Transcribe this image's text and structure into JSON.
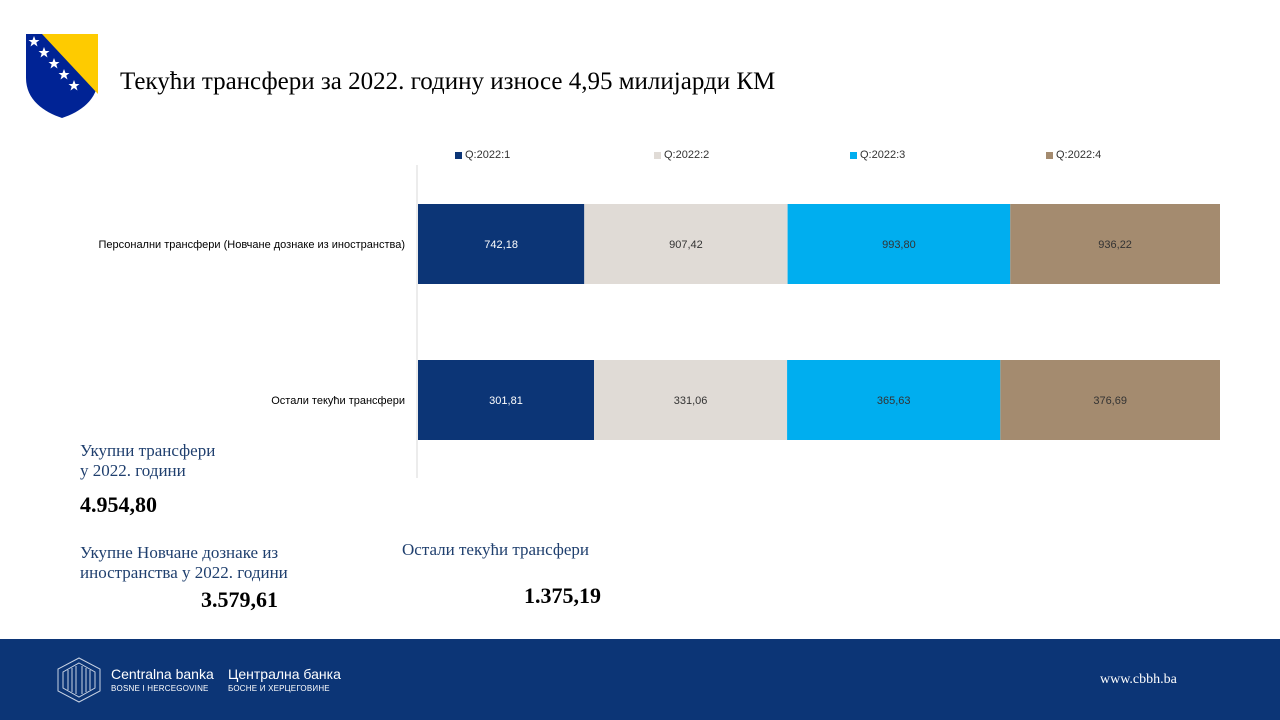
{
  "header": {
    "title": "Текући трансфери за 2022. годину износе 4,95 милијарди КМ"
  },
  "chart_data": {
    "type": "bar",
    "orientation": "horizontal",
    "stacked": true,
    "categories": [
      "Персонални трансфери (Новчане дознаке из иностранства)",
      "Остали текући трансфери"
    ],
    "series": [
      {
        "name": "Q:2022:1",
        "values": [
          742.18,
          301.81
        ],
        "labels": [
          "742,18",
          "301,81"
        ],
        "color": "#0c3576"
      },
      {
        "name": "Q:2022:2",
        "values": [
          907.42,
          331.06
        ],
        "labels": [
          "907,42",
          "331,06"
        ],
        "color": "#e0dbd6"
      },
      {
        "name": "Q:2022:3",
        "values": [
          993.8,
          365.63
        ],
        "labels": [
          "993,80",
          "365,63"
        ],
        "color": "#00aeef"
      },
      {
        "name": "Q:2022:4",
        "values": [
          936.22,
          376.69
        ],
        "labels": [
          "936,22",
          "376,69"
        ],
        "color": "#a48b6f"
      }
    ],
    "percent_stacked": true,
    "legend_position": "top",
    "grid": false
  },
  "stats": {
    "total_label_line1": "Укупни трансфери",
    "total_label_line2": "у 2022. години",
    "total_value": "4.954,80",
    "remit_label_line1": "Укупне Новчане дознаке из",
    "remit_label_line2": "иностранства у 2022. години",
    "remit_value": "3.579,61",
    "other_label": "Остали текући трансфери",
    "other_value": "1.375,19"
  },
  "footer": {
    "bank_latin": "Centralna banka",
    "bank_latin_sub": "BOSNE I HERCEGOVINE",
    "bank_cyrillic": "Централна банка",
    "bank_cyrillic_sub": "БОСНЕ И ХЕРЦЕГОВИНЕ",
    "url": "www.cbbh.ba"
  }
}
